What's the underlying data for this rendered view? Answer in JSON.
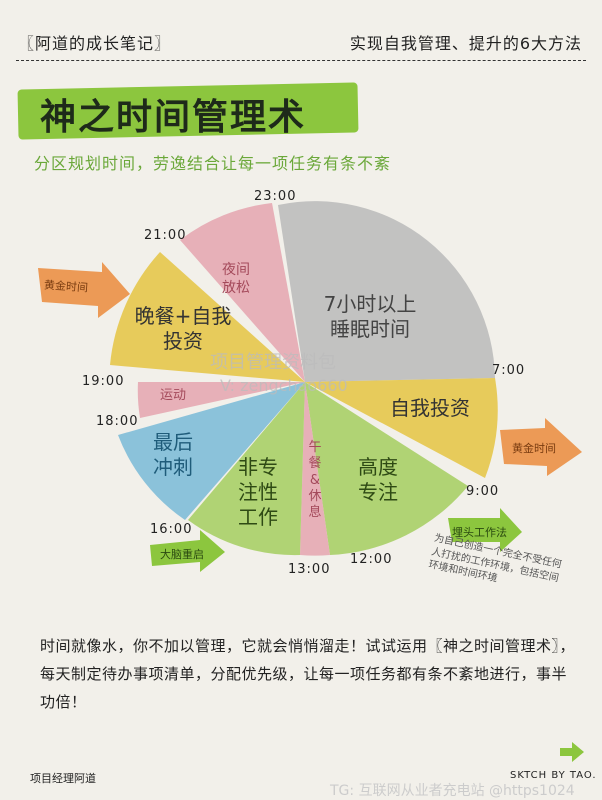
{
  "header": {
    "left": "〖阿道的成长笔记〗",
    "right": "实现自我管理、提升的6大方法"
  },
  "title": "神之时间管理术",
  "subtitle": "分区规划时间，劳逸结合让每一项任务有条不紊",
  "clock": {
    "t2300": "23:00",
    "t2100": "21:00",
    "t1900": "19:00",
    "t1800": "18:00",
    "t1600": "16:00",
    "t1300": "13:00",
    "t1200": "12:00",
    "t0900": "9:00",
    "t0700": "7:00"
  },
  "segments": {
    "sleep": "7小时以上睡眠时间",
    "night_relax": "夜间放松",
    "dinner": "晚餐+自我投资",
    "exercise": "运动",
    "sprint": "最后冲刺",
    "non_focus": "非专注性工作",
    "lunch": "午餐&休息",
    "focus": "高度专注",
    "self_invest": "自我投资"
  },
  "tags": {
    "golden_left": "黄金时间",
    "golden_right": "黄金时间",
    "brain_reset": "大脑重启",
    "fullforce": "埋头工作法"
  },
  "note": "为自己创造一个完全不受任何人打扰的工作环境，包括空间环境和时间环境",
  "watermark_mid": "项目管理资料包",
  "watermark_mid2": "V: zengchao660",
  "paragraph": "时间就像水，你不加以管理，它就会悄悄溜走！试试运用〖神之时间管理术〗，每天制定待办事项清单，分配优先级，让每一项任务都有条不紊地进行，事半功倍！",
  "footer": {
    "left": "项目经理阿道",
    "right": "SKTCH BY TAO.",
    "watermark": "TG: 互联网从业者充电站 @https1024"
  },
  "colors": {
    "green": "#a8cf67",
    "yellow": "#e6c64b",
    "grey": "#bdbdbd",
    "pink": "#e6a8b3",
    "blue": "#7fbdd8",
    "orange": "#ec9a56",
    "title_band": "#8cc63e",
    "accent_green": "#6ba83a"
  }
}
